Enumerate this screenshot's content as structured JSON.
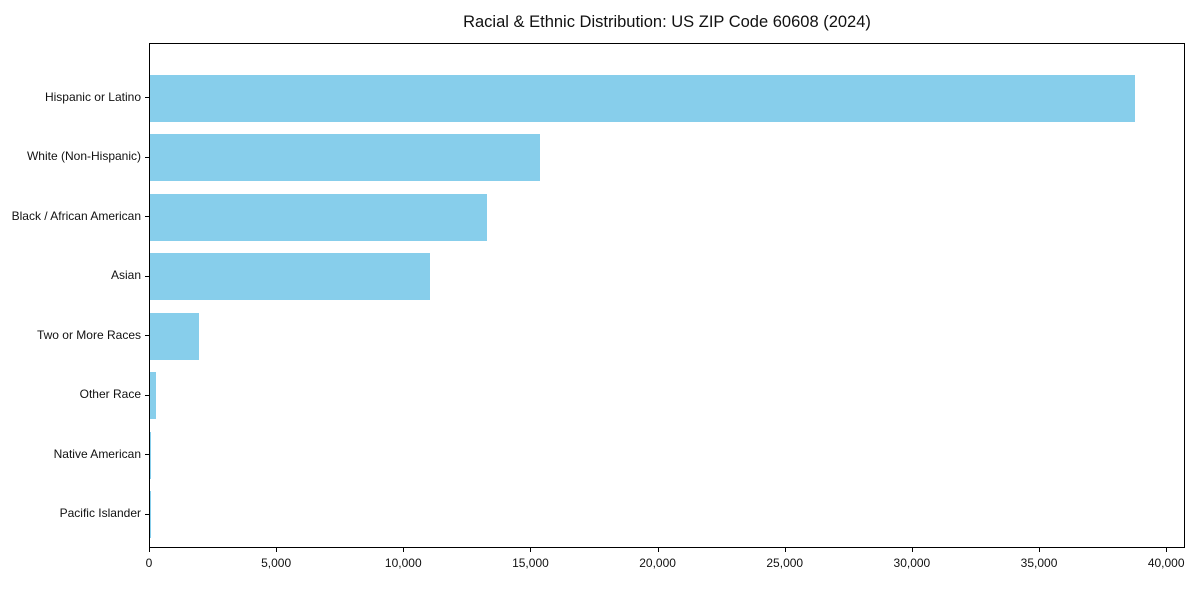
{
  "chart_data": {
    "type": "bar",
    "orientation": "horizontal",
    "title": "Racial & Ethnic Distribution: US ZIP Code 60608 (2024)",
    "categories": [
      "Hispanic or Latino",
      "White (Non-Hispanic)",
      "Black / African American",
      "Asian",
      "Two or More Races",
      "Other Race",
      "Native American",
      "Pacific Islander"
    ],
    "values": [
      38800,
      15350,
      13270,
      11020,
      1950,
      230,
      40,
      10
    ],
    "xlabel": "",
    "ylabel": "",
    "xlim": [
      0,
      40740
    ],
    "x_ticks": [
      0,
      5000,
      10000,
      15000,
      20000,
      25000,
      30000,
      35000,
      40000
    ],
    "x_tick_labels": [
      "0",
      "5,000",
      "10,000",
      "15,000",
      "20,000",
      "25,000",
      "30,000",
      "35,000",
      "40,000"
    ],
    "bar_color": "#87CEEB",
    "axis_color": "#000000",
    "background_color": "#ffffff",
    "grid": false,
    "legend_position": "none"
  }
}
